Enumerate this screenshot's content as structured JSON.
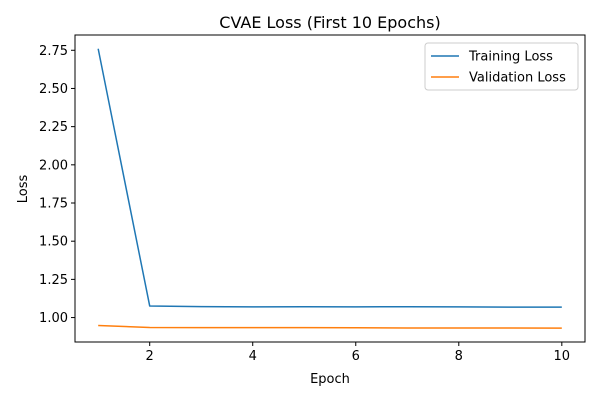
{
  "chart_data": {
    "type": "line",
    "title": "CVAE Loss (First 10 Epochs)",
    "xlabel": "Epoch",
    "ylabel": "Loss",
    "x": [
      1,
      2,
      3,
      4,
      5,
      6,
      7,
      8,
      9,
      10
    ],
    "xlim": [
      0.55,
      10.45
    ],
    "ylim": [
      0.84,
      2.85
    ],
    "xticks": [
      2,
      4,
      6,
      8,
      10
    ],
    "yticks": [
      1.0,
      1.25,
      1.5,
      1.75,
      2.0,
      2.25,
      2.5,
      2.75
    ],
    "xtick_labels": [
      "2",
      "4",
      "6",
      "8",
      "10"
    ],
    "ytick_labels": [
      "1.00",
      "1.25",
      "1.50",
      "1.75",
      "2.00",
      "2.25",
      "2.50",
      "2.75"
    ],
    "grid": false,
    "legend_position": "top-right",
    "series": [
      {
        "name": "Training Loss",
        "color": "#1f77b4",
        "values": [
          2.76,
          1.076,
          1.072,
          1.07,
          1.071,
          1.07,
          1.071,
          1.07,
          1.068,
          1.068
        ]
      },
      {
        "name": "Validation Loss",
        "color": "#ff7f0e",
        "values": [
          0.948,
          0.935,
          0.934,
          0.934,
          0.934,
          0.933,
          0.932,
          0.932,
          0.932,
          0.931
        ]
      }
    ]
  }
}
